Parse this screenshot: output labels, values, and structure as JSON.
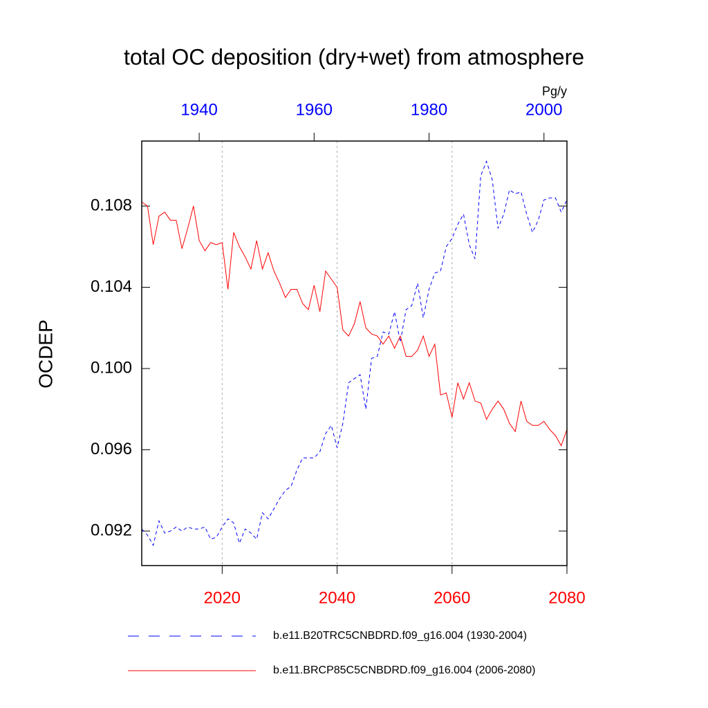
{
  "chart_data": {
    "type": "line",
    "title": "total OC deposition (dry+wet) from atmosphere",
    "units": "Pg/y",
    "y_label": "OCDEP",
    "xlim": [
      2006,
      2080
    ],
    "xticks": [
      2020,
      2040,
      2060,
      2080
    ],
    "xticks_color": "#ff0000",
    "x2lim": [
      1930,
      2004
    ],
    "x2ticks": [
      1940,
      1960,
      1980,
      2000
    ],
    "x2ticks_color": "#0000ff",
    "ylim": [
      0.0903,
      0.1112
    ],
    "yticks": [
      0.092,
      0.096,
      {
        "value": 0.1,
        "label": "0.100"
      },
      0.104,
      0.108
    ],
    "grid": true,
    "series": [
      {
        "name": "b.e11.B20TRC5CNBDRD.f09_g16.004 (1930-2004)",
        "color": "#0000ff",
        "dash": true,
        "xaxis": "x2",
        "x": [
          1930,
          1931,
          1932,
          1933,
          1934,
          1935,
          1936,
          1937,
          1938,
          1939,
          1940,
          1941,
          1942,
          1943,
          1944,
          1945,
          1946,
          1947,
          1948,
          1949,
          1950,
          1951,
          1952,
          1953,
          1954,
          1955,
          1956,
          1957,
          1958,
          1959,
          1960,
          1961,
          1962,
          1963,
          1964,
          1965,
          1966,
          1967,
          1968,
          1969,
          1970,
          1971,
          1972,
          1973,
          1974,
          1975,
          1976,
          1977,
          1978,
          1979,
          1980,
          1981,
          1982,
          1983,
          1984,
          1985,
          1986,
          1987,
          1988,
          1989,
          1990,
          1991,
          1992,
          1993,
          1994,
          1995,
          1996,
          1997,
          1998,
          1999,
          2000,
          2001,
          2002,
          2003,
          2004
        ],
        "values": [
          0.0921,
          0.0918,
          0.0913,
          0.0925,
          0.0919,
          0.092,
          0.0922,
          0.092,
          0.0922,
          0.0921,
          0.0921,
          0.0922,
          0.0916,
          0.0917,
          0.0922,
          0.0926,
          0.0924,
          0.0914,
          0.0921,
          0.0919,
          0.0916,
          0.0929,
          0.0926,
          0.0931,
          0.0936,
          0.094,
          0.0942,
          0.095,
          0.0956,
          0.0956,
          0.0956,
          0.0959,
          0.0968,
          0.0972,
          0.0961,
          0.0973,
          0.0993,
          0.0995,
          0.0997,
          0.098,
          0.1005,
          0.1006,
          0.1018,
          0.1017,
          0.1028,
          0.1013,
          0.1029,
          0.1031,
          0.1042,
          0.1025,
          0.1039,
          0.1047,
          0.1048,
          0.106,
          0.1064,
          0.1071,
          0.1076,
          0.1061,
          0.1054,
          0.1095,
          0.1102,
          0.1093,
          0.1069,
          0.1076,
          0.1088,
          0.1086,
          0.1087,
          0.1076,
          0.1067,
          0.1073,
          0.1083,
          0.1084,
          0.1084,
          0.1077,
          0.1083
        ]
      },
      {
        "name": "b.e11.BRCP85C5CNBDRD.f09_g16.004 (2006-2080)",
        "color": "#ff0000",
        "dash": false,
        "xaxis": "x",
        "x": [
          2006,
          2007,
          2008,
          2009,
          2010,
          2011,
          2012,
          2013,
          2014,
          2015,
          2016,
          2017,
          2018,
          2019,
          2020,
          2021,
          2022,
          2023,
          2024,
          2025,
          2026,
          2027,
          2028,
          2029,
          2030,
          2031,
          2032,
          2033,
          2034,
          2035,
          2036,
          2037,
          2038,
          2039,
          2040,
          2041,
          2042,
          2043,
          2044,
          2045,
          2046,
          2047,
          2048,
          2049,
          2050,
          2051,
          2052,
          2053,
          2054,
          2055,
          2056,
          2057,
          2058,
          2059,
          2060,
          2061,
          2062,
          2063,
          2064,
          2065,
          2066,
          2067,
          2068,
          2069,
          2070,
          2071,
          2072,
          2073,
          2074,
          2075,
          2076,
          2077,
          2078,
          2079,
          2080
        ],
        "values": [
          0.1082,
          0.108,
          0.1061,
          0.1075,
          0.1077,
          0.1073,
          0.1073,
          0.1059,
          0.1069,
          0.108,
          0.1063,
          0.1058,
          0.1062,
          0.1061,
          0.1062,
          0.1039,
          0.1067,
          0.106,
          0.1055,
          0.1049,
          0.1063,
          0.1049,
          0.1057,
          0.1048,
          0.1042,
          0.1035,
          0.1039,
          0.1039,
          0.1032,
          0.1029,
          0.1041,
          0.1028,
          0.1048,
          0.1044,
          0.104,
          0.1019,
          0.1016,
          0.1022,
          0.1033,
          0.102,
          0.1017,
          0.1016,
          0.1012,
          0.1016,
          0.101,
          0.1016,
          0.1006,
          0.1006,
          0.1009,
          0.1016,
          0.1006,
          0.1012,
          0.0987,
          0.0988,
          0.0976,
          0.0993,
          0.0985,
          0.0993,
          0.0984,
          0.0983,
          0.0975,
          0.098,
          0.0984,
          0.098,
          0.0973,
          0.0969,
          0.0984,
          0.0974,
          0.0972,
          0.0972,
          0.0974,
          0.097,
          0.0967,
          0.0962,
          0.097
        ]
      }
    ]
  }
}
